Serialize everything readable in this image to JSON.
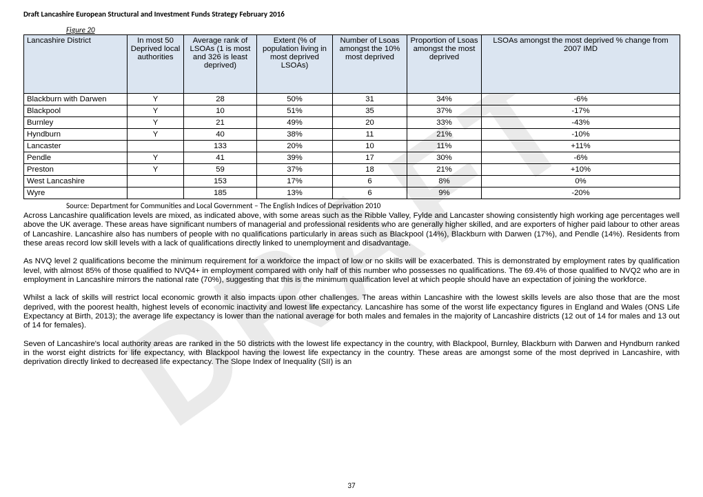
{
  "watermark": "DRAFT",
  "doc_header": "Draft Lancashire European Structural and Investment Funds Strategy February 2016",
  "figure_label": "Figure 20",
  "table": {
    "headers": [
      "Lancashire District",
      "In most 50 Deprived local authorities",
      "Average rank of LSOAs\n(1 is most and 326 is least deprived)",
      "Extent\n(% of population living in most deprived LSOAs)",
      "Number of Lsoas amongst the 10% most deprived",
      "Proportion of Lsoas amongst the most deprived",
      "LSOAs amongst the most deprived\n\n% change from 2007 IMD"
    ],
    "rows": [
      [
        "Blackburn with Darwen",
        "Y",
        "28",
        "50%",
        "31",
        "34%",
        "-6%"
      ],
      [
        "Blackpool",
        "Y",
        "10",
        "51%",
        "35",
        "37%",
        "-17%"
      ],
      [
        "Burnley",
        "Y",
        "21",
        "49%",
        "20",
        "33%",
        "-43%"
      ],
      [
        "Hyndburn",
        "Y",
        "40",
        "38%",
        "11",
        "21%",
        "-10%"
      ],
      [
        "Lancaster",
        "",
        "133",
        "20%",
        "10",
        "11%",
        "+11%"
      ],
      [
        "Pendle",
        "Y",
        "41",
        "39%",
        "17",
        "30%",
        "-6%"
      ],
      [
        "Preston",
        "Y",
        "59",
        "37%",
        "18",
        "21%",
        "+10%"
      ],
      [
        "West Lancashire",
        "",
        "153",
        "17%",
        "6",
        "8%",
        "0%"
      ],
      [
        "Wyre",
        "",
        "185",
        "13%",
        "6",
        "9%",
        "-20%"
      ]
    ]
  },
  "source": "Source: Department for Communities and Local Government – The English Indices of Deprivation 2010",
  "paragraphs": [
    "Across Lancashire qualification levels are mixed, as indicated above, with some areas such as the Ribble Valley, Fylde and Lancaster showing consistently high working age percentages well above the UK average. These areas have significant numbers of managerial and professional residents who are generally higher skilled, and are exporters of higher paid labour to other areas of Lancashire.  Lancashire also has numbers of people with no qualifications particularly in areas such as Blackpool (14%), Blackburn with Darwen (17%), and Pendle (14%).  Residents from these areas record low skill levels with a lack of qualifications directly linked to unemployment and disadvantage.",
    "As NVQ level 2 qualifications become the minimum requirement for a workforce the impact of low or no skills will be exacerbated. This is demonstrated by employment rates by qualification level, with almost 85% of those qualified to NVQ4+ in employment compared with only half of this number who possesses no qualifications. The 69.4% of those qualified to NVQ2 who are in employment in Lancashire mirrors the national rate (70%), suggesting that this is the minimum qualification level at which people should have an expectation of joining the workforce.",
    "Whilst a lack of skills will restrict local economic growth it also impacts upon other challenges. The areas within Lancashire with the lowest skills levels are also those that are the most deprived, with the poorest health, highest levels of economic inactivity and lowest life expectancy. Lancashire has some of the worst life expectancy figures in England and Wales (ONS Life Expectancy at Birth, 2013); the average life expectancy is lower than the national average for both males and females in the majority of Lancashire districts (12 out of 14 for males and 13 out of 14 for females).",
    "Seven of Lancashire's local authority areas are ranked in the 50 districts with the lowest life expectancy in the country, with Blackpool, Burnley, Blackburn with Darwen and Hyndburn ranked in the worst eight districts for life expectancy, with Blackpool having the lowest life expectancy in the country. These areas are amongst some of the most deprived in Lancashire, with deprivation directly linked to decreased life expectancy. The Slope Index of Inequality (SII) is an"
  ],
  "page_number": "37"
}
